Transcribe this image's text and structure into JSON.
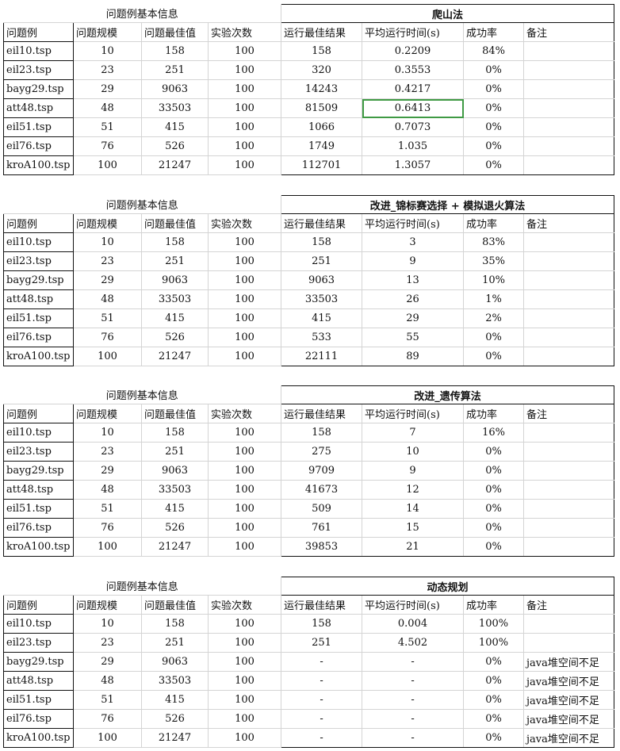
{
  "headers": {
    "left_title": "问题例基本信息",
    "cols": [
      "问题例",
      "问题规模",
      "问题最佳值",
      "实验次数",
      "运行最佳结果",
      "平均运行时间(s)",
      "成功率",
      "备注"
    ]
  },
  "tables": [
    {
      "title": "爬山法",
      "rows": [
        [
          "eil10.tsp",
          "10",
          "158",
          "100",
          "158",
          "0.2209",
          "84%",
          ""
        ],
        [
          "eil23.tsp",
          "23",
          "251",
          "100",
          "320",
          "0.3553",
          "0%",
          ""
        ],
        [
          "bayg29.tsp",
          "29",
          "9063",
          "100",
          "14243",
          "0.4217",
          "0%",
          ""
        ],
        [
          "att48.tsp",
          "48",
          "33503",
          "100",
          "81509",
          "0.6413",
          "0%",
          ""
        ],
        [
          "eil51.tsp",
          "51",
          "415",
          "100",
          "1066",
          "0.7073",
          "0%",
          ""
        ],
        [
          "eil76.tsp",
          "76",
          "526",
          "100",
          "1749",
          "1.035",
          "0%",
          ""
        ],
        [
          "kroA100.tsp",
          "100",
          "21247",
          "100",
          "112701",
          "1.3057",
          "0%",
          ""
        ]
      ]
    },
    {
      "title": "改进_锦标赛选择 + 模拟退火算法",
      "rows": [
        [
          "eil10.tsp",
          "10",
          "158",
          "100",
          "158",
          "3",
          "83%",
          ""
        ],
        [
          "eil23.tsp",
          "23",
          "251",
          "100",
          "251",
          "9",
          "35%",
          ""
        ],
        [
          "bayg29.tsp",
          "29",
          "9063",
          "100",
          "9063",
          "13",
          "10%",
          ""
        ],
        [
          "att48.tsp",
          "48",
          "33503",
          "100",
          "33503",
          "26",
          "1%",
          ""
        ],
        [
          "eil51.tsp",
          "51",
          "415",
          "100",
          "415",
          "29",
          "2%",
          ""
        ],
        [
          "eil76.tsp",
          "76",
          "526",
          "100",
          "533",
          "55",
          "0%",
          ""
        ],
        [
          "kroA100.tsp",
          "100",
          "21247",
          "100",
          "22111",
          "89",
          "0%",
          ""
        ]
      ]
    },
    {
      "title": "改进_遗传算法",
      "rows": [
        [
          "eil10.tsp",
          "10",
          "158",
          "100",
          "158",
          "7",
          "16%",
          ""
        ],
        [
          "eil23.tsp",
          "23",
          "251",
          "100",
          "275",
          "10",
          "0%",
          ""
        ],
        [
          "bayg29.tsp",
          "29",
          "9063",
          "100",
          "9709",
          "9",
          "0%",
          ""
        ],
        [
          "att48.tsp",
          "48",
          "33503",
          "100",
          "41673",
          "12",
          "0%",
          ""
        ],
        [
          "eil51.tsp",
          "51",
          "415",
          "100",
          "509",
          "14",
          "0%",
          ""
        ],
        [
          "eil76.tsp",
          "76",
          "526",
          "100",
          "761",
          "15",
          "0%",
          ""
        ],
        [
          "kroA100.tsp",
          "100",
          "21247",
          "100",
          "39853",
          "21",
          "0%",
          ""
        ]
      ]
    },
    {
      "title": "动态规划",
      "rows": [
        [
          "eil10.tsp",
          "10",
          "158",
          "100",
          "158",
          "0.004",
          "100%",
          ""
        ],
        [
          "eil23.tsp",
          "23",
          "251",
          "100",
          "251",
          "4.502",
          "100%",
          ""
        ],
        [
          "bayg29.tsp",
          "29",
          "9063",
          "100",
          "-",
          "-",
          "0%",
          "java堆空间不足"
        ],
        [
          "att48.tsp",
          "48",
          "33503",
          "100",
          "-",
          "-",
          "0%",
          "java堆空间不足"
        ],
        [
          "eil51.tsp",
          "51",
          "415",
          "100",
          "-",
          "-",
          "0%",
          "java堆空间不足"
        ],
        [
          "eil76.tsp",
          "76",
          "526",
          "100",
          "-",
          "-",
          "0%",
          "java堆空间不足"
        ],
        [
          "kroA100.tsp",
          "100",
          "21247",
          "100",
          "-",
          "-",
          "0%",
          "java堆空间不足"
        ]
      ]
    }
  ]
}
